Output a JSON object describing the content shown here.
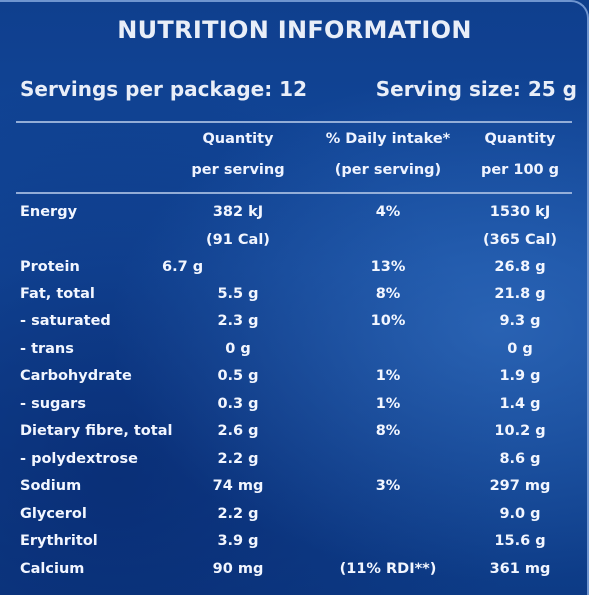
{
  "title": "NUTRITION INFORMATION",
  "servings_per_package": "Servings per package: 12",
  "serving_size": "Serving size: 25 g",
  "columns": {
    "qty_line1": "Quantity",
    "qty_line2": "per serving",
    "pct_line1": "% Daily intake*",
    "pct_line2": "(per serving)",
    "q100_line1": "Quantity",
    "q100_line2": "per 100 g"
  },
  "rows": [
    {
      "name": "Energy",
      "qty": "382 kJ",
      "pct": "4%",
      "q100": "1530 kJ"
    },
    {
      "name": "",
      "qty": "(91 Cal)",
      "pct": "",
      "q100": "(365 Cal)"
    },
    {
      "name": "Protein",
      "qty": "6.7 g",
      "pct": "13%",
      "q100": "26.8 g"
    },
    {
      "name": "Fat, total",
      "qty": "5.5 g",
      "pct": "8%",
      "q100": "21.8 g"
    },
    {
      "name": " - saturated",
      "qty": "2.3 g",
      "pct": "10%",
      "q100": "9.3 g"
    },
    {
      "name": " - trans",
      "qty": "0 g",
      "pct": "",
      "q100": "0 g"
    },
    {
      "name": "Carbohydrate",
      "qty": "0.5 g",
      "pct": "1%",
      "q100": "1.9 g"
    },
    {
      "name": " - sugars",
      "qty": "0.3 g",
      "pct": "1%",
      "q100": "1.4 g"
    },
    {
      "name": "Dietary fibre, total",
      "qty": "2.6 g",
      "pct": "8%",
      "q100": "10.2 g"
    },
    {
      "name": " - polydextrose",
      "qty": "2.2 g",
      "pct": "",
      "q100": "8.6 g"
    },
    {
      "name": "Sodium",
      "qty": "74 mg",
      "pct": "3%",
      "q100": "297 mg"
    },
    {
      "name": "Glycerol",
      "qty": "2.2 g",
      "pct": "",
      "q100": "9.0 g"
    },
    {
      "name": "Erythritol",
      "qty": "3.9 g",
      "pct": "",
      "q100": "15.6 g"
    },
    {
      "name": "Calcium",
      "qty": "90 mg",
      "pct": "(11% RDI**)",
      "q100": "361 mg"
    }
  ]
}
